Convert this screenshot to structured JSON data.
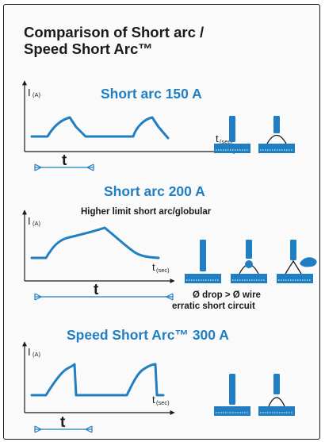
{
  "title_line1": "Comparison of Short arc /",
  "title_line2": "Speed Short Arc™",
  "sections": [
    {
      "heading": "Short arc 150 A",
      "y_axis_label": "I",
      "y_axis_unit": "(A)",
      "x_axis_label": "t",
      "x_axis_unit": "(sec)",
      "period_label": "t"
    },
    {
      "heading": "Short arc 200 A",
      "subheading": "Higher limit short arc/globular",
      "y_axis_label": "I",
      "y_axis_unit": "(A)",
      "x_axis_label": "t",
      "x_axis_unit": "(sec)",
      "period_label": "t",
      "note_line1": "Ø drop > Ø wire",
      "note_line2": "erratic short circuit"
    },
    {
      "heading": "Speed Short Arc™ 300 A",
      "y_axis_label": "I",
      "y_axis_unit": "(A)",
      "x_axis_label": "t",
      "x_axis_unit": "(sec)",
      "period_label": "t"
    }
  ],
  "colors": {
    "accent": "#1f7fc2",
    "wire": "#1f7fc2",
    "plate": "#1f7fc2",
    "text": "#1a1a1a"
  }
}
